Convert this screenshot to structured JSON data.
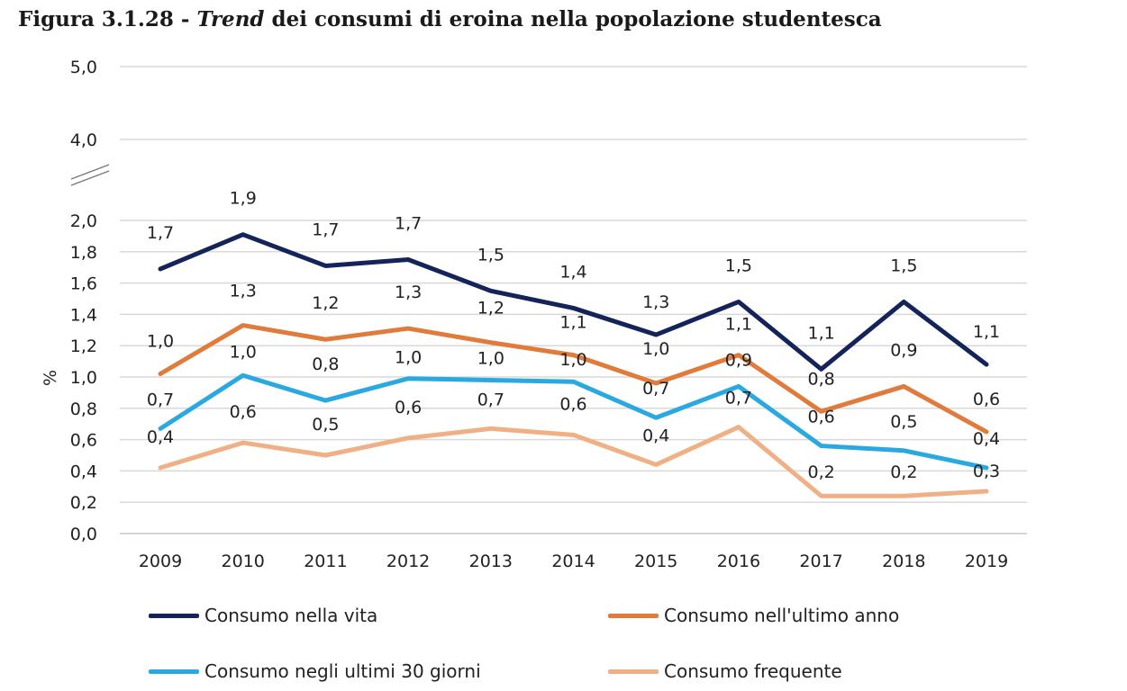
{
  "title": {
    "prefix": "Figura 3.1.28 - ",
    "italic": "Trend",
    "rest": " dei consumi di eroina nella popolazione studentesca"
  },
  "chart_data": {
    "type": "line",
    "ylabel": "%",
    "xlabel": "",
    "categories": [
      "2009",
      "2010",
      "2011",
      "2012",
      "2013",
      "2014",
      "2015",
      "2016",
      "2017",
      "2018",
      "2019"
    ],
    "yticks": [
      "0,0",
      "0,2",
      "0,4",
      "0,6",
      "0,8",
      "1,0",
      "1,2",
      "1,4",
      "1,6",
      "1,8",
      "2,0",
      "4,0",
      "5,0"
    ],
    "ylim": [
      0,
      5
    ],
    "axis_break": "between 2,0 and 4,0",
    "grid": true,
    "legend_position": "bottom",
    "series": [
      {
        "name": "Consumo nella vita",
        "color": "#14245a",
        "values": [
          1.69,
          1.91,
          1.71,
          1.75,
          1.55,
          1.44,
          1.27,
          1.48,
          1.05,
          1.48,
          1.08
        ],
        "labels": [
          "1,7",
          "1,9",
          "1,7",
          "1,7",
          "1,5",
          "1,4",
          "1,3",
          "1,5",
          "1,1",
          "1,5",
          "1,1"
        ]
      },
      {
        "name": "Consumo nell'ultimo anno",
        "color": "#e07b3c",
        "values": [
          1.02,
          1.33,
          1.24,
          1.31,
          1.22,
          1.14,
          0.96,
          1.14,
          0.78,
          0.94,
          0.65
        ],
        "labels": [
          "1,0",
          "1,3",
          "1,2",
          "1,3",
          "1,2",
          "1,1",
          "1,0",
          "1,1",
          "0,8",
          "0,9",
          "0,6"
        ]
      },
      {
        "name": "Consumo negli ultimi 30 giorni",
        "color": "#2aa9e0",
        "values": [
          0.67,
          1.01,
          0.85,
          0.99,
          0.98,
          0.97,
          0.74,
          0.94,
          0.56,
          0.53,
          0.42
        ],
        "labels": [
          "0,7",
          "1,0",
          "0,8",
          "1,0",
          "1,0",
          "1,0",
          "0,7",
          "0,9",
          "0,6",
          "0,5",
          "0,4"
        ]
      },
      {
        "name": "Consumo frequente",
        "color": "#f0b085",
        "values": [
          0.42,
          0.58,
          0.5,
          0.61,
          0.67,
          0.63,
          0.44,
          0.68,
          0.24,
          0.24,
          0.27
        ],
        "labels": [
          "0,4",
          "0,6",
          "0,5",
          "0,6",
          "0,7",
          "0,6",
          "0,4",
          "0,7",
          "0,2",
          "0,2",
          "0,3"
        ]
      }
    ]
  }
}
